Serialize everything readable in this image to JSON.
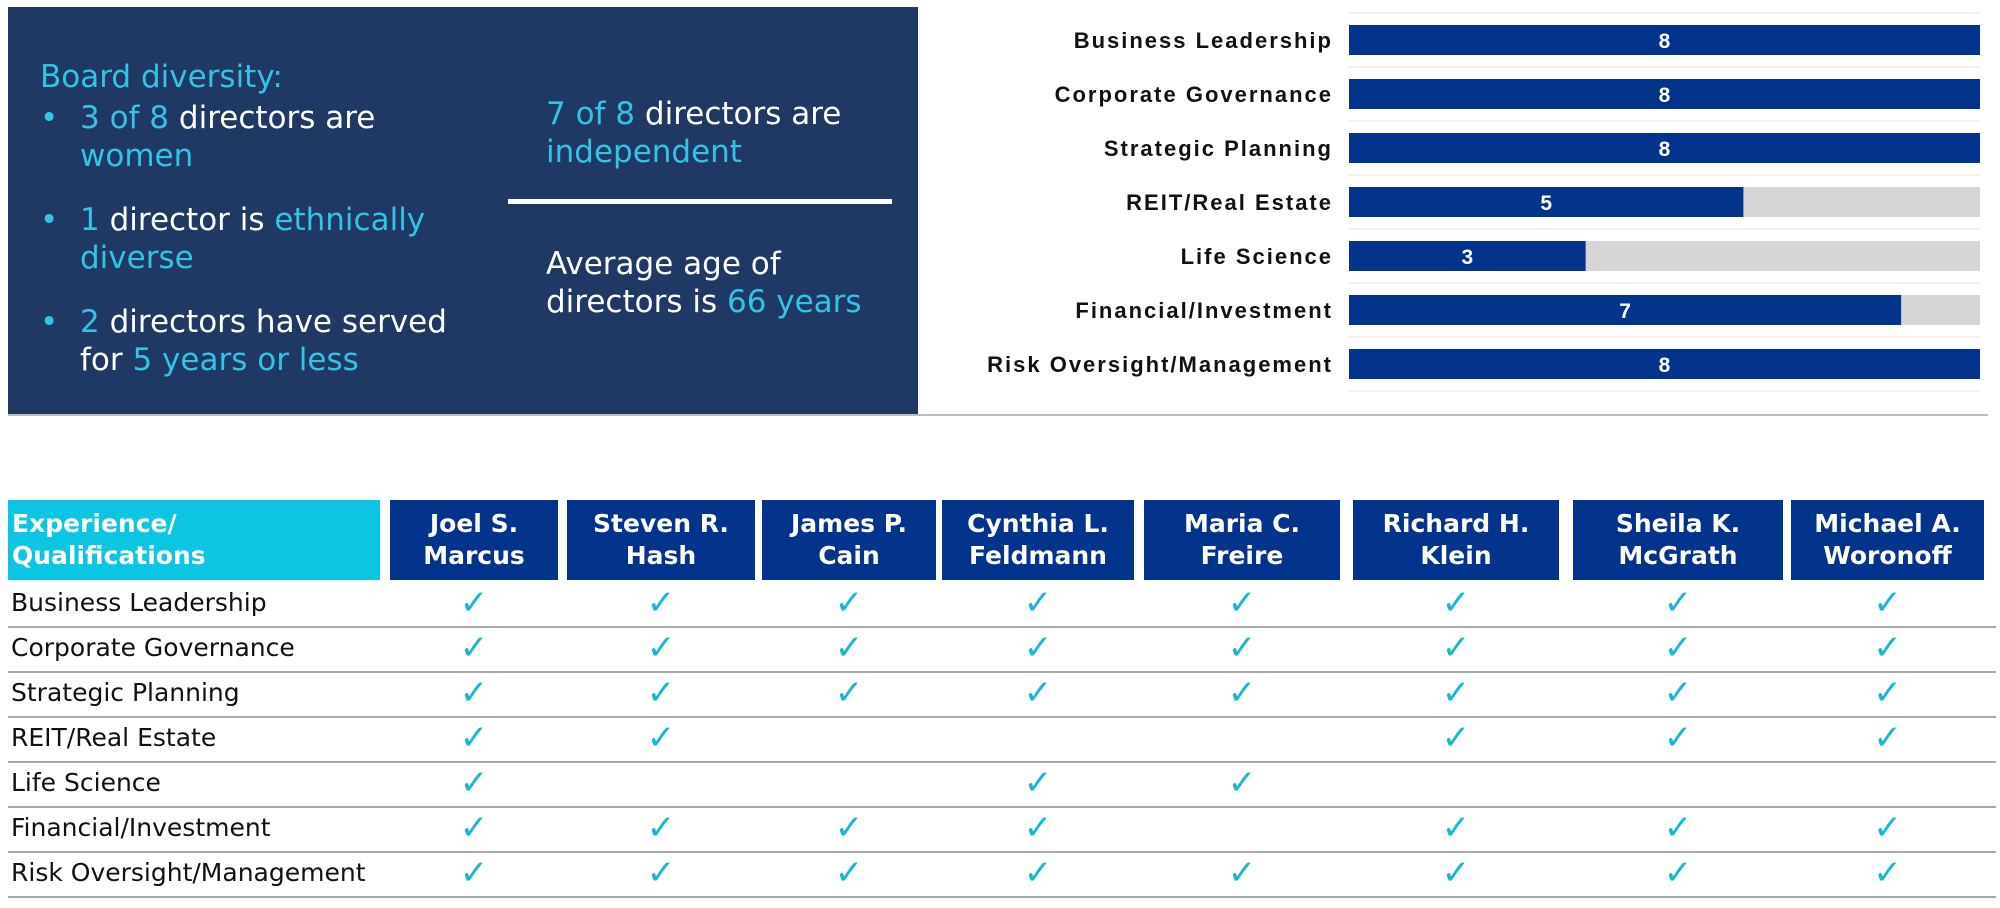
{
  "summary": {
    "heading": "Board diversity:",
    "bullet_glyph": "•",
    "bullets": [
      {
        "hl": "3 of 8",
        "text": " directors are ",
        "hl2": "women"
      },
      {
        "hl": "1",
        "text": " director is ",
        "hl2": "ethnically diverse"
      },
      {
        "hl": "2",
        "text": " directors have served for ",
        "hl2": "5 years or less"
      }
    ],
    "independent": {
      "hl": "7 of 8",
      "text": " directors are ",
      "hl2": "independent"
    },
    "age": {
      "text": "Average age of directors is ",
      "hl": "66 years"
    }
  },
  "colors": {
    "panel": "#1f3864",
    "highlight": "#34c2e6",
    "bar": "#03338a",
    "bar_track": "#d6d6d6",
    "header_first": "#0cc5e3",
    "check": "#17b6d4"
  },
  "chart_data": {
    "type": "bar",
    "orientation": "horizontal",
    "categories": [
      "Business Leadership",
      "Corporate Governance",
      "Strategic Planning",
      "REIT/Real Estate",
      "Life Science",
      "Financial/Investment",
      "Risk Oversight/Management"
    ],
    "values": [
      8,
      8,
      8,
      5,
      3,
      7,
      8
    ],
    "xlim": [
      0,
      8
    ],
    "title": "",
    "xlabel": "",
    "ylabel": "",
    "grid": true
  },
  "matrix": {
    "corner_label": "Experience/\nQualifications",
    "check_glyph": "✓",
    "directors": [
      "Joel S.\nMarcus",
      "Steven R.\nHash",
      "James P.\nCain",
      "Cynthia L.\nFeldmann",
      "Maria C.\nFreire",
      "Richard H.\nKlein",
      "Sheila K.\nMcGrath",
      "Michael A.\nWoronoff"
    ],
    "rows": [
      {
        "label": "Business Leadership",
        "checks": [
          1,
          1,
          1,
          1,
          1,
          1,
          1,
          1
        ]
      },
      {
        "label": "Corporate Governance",
        "checks": [
          1,
          1,
          1,
          1,
          1,
          1,
          1,
          1
        ]
      },
      {
        "label": "Strategic Planning",
        "checks": [
          1,
          1,
          1,
          1,
          1,
          1,
          1,
          1
        ]
      },
      {
        "label": "REIT/Real Estate",
        "checks": [
          1,
          1,
          0,
          0,
          0,
          1,
          1,
          1
        ]
      },
      {
        "label": "Life Science",
        "checks": [
          1,
          0,
          0,
          1,
          1,
          0,
          0,
          0
        ]
      },
      {
        "label": "Financial/Investment",
        "checks": [
          1,
          1,
          1,
          1,
          0,
          1,
          1,
          1
        ]
      },
      {
        "label": "Risk Oversight/Management",
        "checks": [
          1,
          1,
          1,
          1,
          1,
          1,
          1,
          1
        ]
      }
    ]
  }
}
